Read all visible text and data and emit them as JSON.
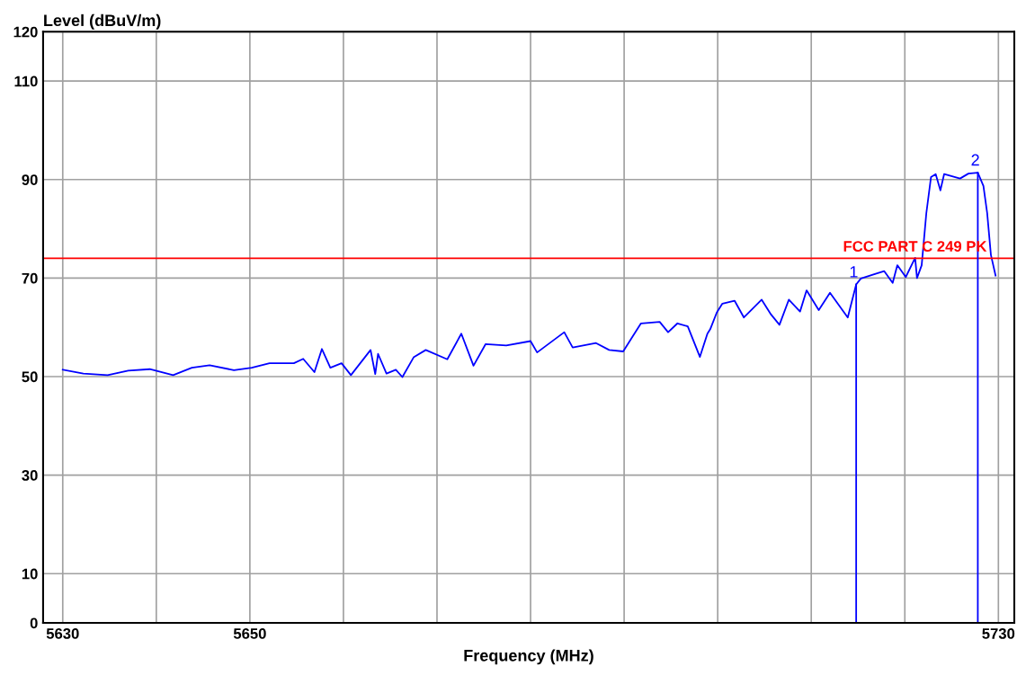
{
  "chart_data": {
    "type": "line",
    "xlabel": "Frequency (MHz)",
    "ylabel": "Level (dBuV/m)",
    "xlim": [
      5627.9,
      5731.7
    ],
    "ylim": [
      0,
      120
    ],
    "xticks": [
      5630,
      {
        "value": 5640,
        "label": null
      },
      5650,
      {
        "value": 5660,
        "label": null
      },
      {
        "value": 5670,
        "label": null
      },
      {
        "value": 5680,
        "label": null
      },
      {
        "value": 5690,
        "label": null
      },
      {
        "value": 5700,
        "label": null
      },
      {
        "value": 5710,
        "label": null
      },
      {
        "value": 5720,
        "label": null
      },
      5730
    ],
    "yticks": [
      0,
      10,
      30,
      50,
      70,
      90,
      110,
      120
    ],
    "grid": true,
    "legend": false,
    "marker": "none",
    "line_style": "solid",
    "series": [
      {
        "color": "#0000ff",
        "x": [
          5630.0,
          5632.2,
          5634.8,
          5637.0,
          5639.3,
          5641.8,
          5643.8,
          5645.7,
          5648.3,
          5650.2,
          5652.1,
          5654.7,
          5655.7,
          5656.9,
          5657.7,
          5658.6,
          5659.8,
          5660.8,
          5662.9,
          5663.4,
          5663.7,
          5664.6,
          5665.6,
          5666.3,
          5667.5,
          5668.8,
          5671.1,
          5672.6,
          5673.9,
          5675.2,
          5677.4,
          5680.0,
          5680.7,
          5683.6,
          5684.5,
          5687.0,
          5688.4,
          5689.9,
          5690.9,
          5691.8,
          5693.8,
          5694.7,
          5695.7,
          5696.8,
          5698.1,
          5698.9,
          5699.2,
          5699.9,
          5700.5,
          5701.8,
          5702.8,
          5704.7,
          5705.7,
          5706.6,
          5707.6,
          5708.8,
          5709.5,
          5710.8,
          5712.0,
          5713.9,
          5714.8,
          5715.3,
          5716.8,
          5717.8,
          5718.7,
          5719.2,
          5720.1,
          5721.1,
          5721.3,
          5721.8,
          5722.3,
          5722.8,
          5723.3,
          5723.8,
          5724.2,
          5725.9,
          5726.8,
          5727.8,
          5728.4,
          5728.8,
          5729.2,
          5729.7
        ],
        "values": [
          51.4,
          50.6,
          50.3,
          51.2,
          51.5,
          50.3,
          51.8,
          52.3,
          51.3,
          51.8,
          52.7,
          52.7,
          53.6,
          50.9,
          55.6,
          51.8,
          52.7,
          50.3,
          55.4,
          50.5,
          54.6,
          50.6,
          51.4,
          49.9,
          53.9,
          55.4,
          53.5,
          58.7,
          52.2,
          56.6,
          56.3,
          57.2,
          54.9,
          59.0,
          55.9,
          56.8,
          55.4,
          55.1,
          58.1,
          60.8,
          61.1,
          59.0,
          60.8,
          60.2,
          54.0,
          58.7,
          59.6,
          63.0,
          64.8,
          65.4,
          62.0,
          65.6,
          62.6,
          60.5,
          65.6,
          63.2,
          67.5,
          63.5,
          67.0,
          62.0,
          68.7,
          69.9,
          70.8,
          71.4,
          69.0,
          72.6,
          70.2,
          74.1,
          70.0,
          72.6,
          83.2,
          90.5,
          91.1,
          87.8,
          91.1,
          90.2,
          91.2,
          91.4,
          88.7,
          83.2,
          74.7,
          70.5
        ]
      }
    ],
    "ref_lines": [
      {
        "axis": "y",
        "value": 74,
        "label": "FCC PART C 249 PK",
        "color": "#ff0000"
      }
    ],
    "annotations": [
      {
        "text": "1",
        "x": 5714.8,
        "y": 68.7
      },
      {
        "text": "2",
        "x": 5727.8,
        "y": 91.4
      }
    ]
  }
}
